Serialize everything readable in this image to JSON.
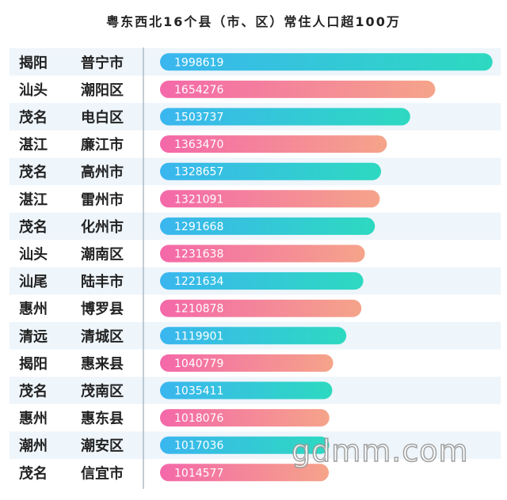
{
  "title": "粤东西北16个县（市、区）常住人口超100万",
  "watermark": "gdmm.com",
  "colors": {
    "row_alt": "#eef5fb",
    "divider": "#8a9aaa",
    "blue_start": "#3ab6ef",
    "blue_end": "#2dd9c0",
    "pink_start": "#f468a9",
    "pink_end": "#f5a48a",
    "value_text": "#ffffff"
  },
  "chart_data": {
    "type": "bar",
    "orientation": "horizontal",
    "title": "粤东西北16个县（市、区）常住人口超100万",
    "xlim": [
      0,
      2000000
    ],
    "grid": false,
    "rows": [
      {
        "city": "揭阳",
        "county": "普宁市",
        "value": 1998619
      },
      {
        "city": "汕头",
        "county": "潮阳区",
        "value": 1654276
      },
      {
        "city": "茂名",
        "county": "电白区",
        "value": 1503737
      },
      {
        "city": "湛江",
        "county": "廉江市",
        "value": 1363470
      },
      {
        "city": "茂名",
        "county": "高州市",
        "value": 1328657
      },
      {
        "city": "湛江",
        "county": "雷州市",
        "value": 1321091
      },
      {
        "city": "茂名",
        "county": "化州市",
        "value": 1291668
      },
      {
        "city": "汕头",
        "county": "潮南区",
        "value": 1231638
      },
      {
        "city": "汕尾",
        "county": "陆丰市",
        "value": 1221634
      },
      {
        "city": "惠州",
        "county": "博罗县",
        "value": 1210878
      },
      {
        "city": "清远",
        "county": "清城区",
        "value": 1119901
      },
      {
        "city": "揭阳",
        "county": "惠来县",
        "value": 1040779
      },
      {
        "city": "茂名",
        "county": "茂南区",
        "value": 1035411
      },
      {
        "city": "惠州",
        "county": "惠东县",
        "value": 1018076
      },
      {
        "city": "潮州",
        "county": "潮安区",
        "value": 1017036
      },
      {
        "city": "茂名",
        "county": "信宜市",
        "value": 1014577
      }
    ]
  }
}
